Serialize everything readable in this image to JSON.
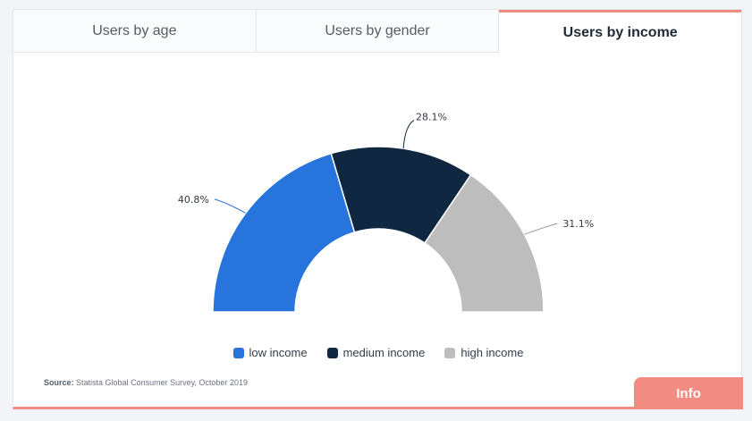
{
  "tabs": [
    {
      "label": "Users by age",
      "active": false
    },
    {
      "label": "Users by gender",
      "active": false
    },
    {
      "label": "Users by income",
      "active": true
    }
  ],
  "chart_data": {
    "type": "pie",
    "variant": "semi-donut",
    "categories": [
      "low income",
      "medium income",
      "high income"
    ],
    "values": [
      40.8,
      28.1,
      31.1
    ],
    "labels": [
      "40.8%",
      "28.1%",
      "31.1%"
    ],
    "colors": [
      "#2874dd",
      "#0f2740",
      "#bdbdbd"
    ],
    "legend_position": "bottom"
  },
  "source": {
    "prefix": "Source:",
    "text": "Statista Global Consumer Survey, October 2019"
  },
  "info_button": {
    "label": "Info"
  }
}
